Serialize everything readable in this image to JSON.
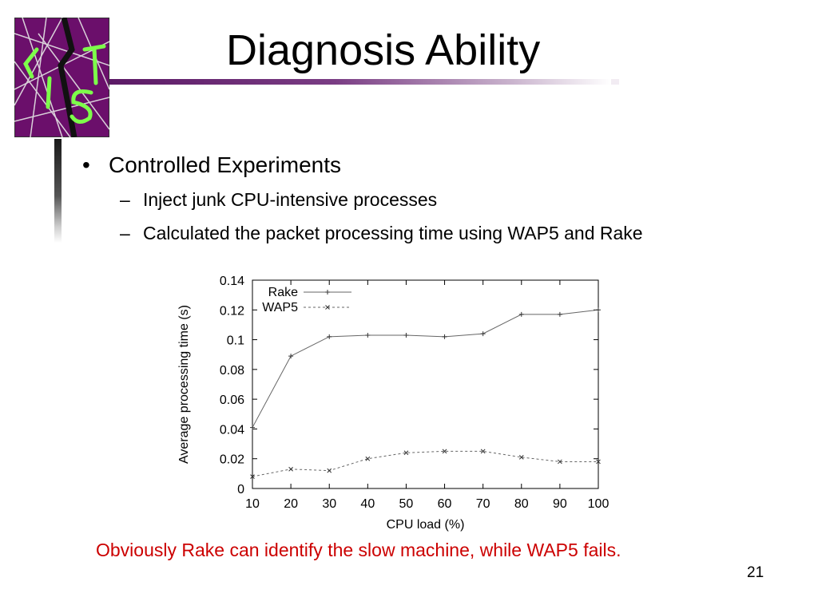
{
  "slide": {
    "title": "Diagnosis Ability",
    "bullet_mark": "•",
    "sub_mark": "–",
    "bullet": "Controlled Experiments",
    "subbullets": [
      "Inject junk CPU-intensive processes",
      "Calculated the packet processing time using WAP5 and Rake"
    ],
    "caption": "Obviously Rake can identify the slow machine, while WAP5 fails.",
    "page_number": "21",
    "colors": {
      "caption": "#cc0000",
      "accent": "#5c1a66",
      "logo_bg": "#6b0f6b",
      "logo_lines": "#7dff4a"
    }
  },
  "chart_data": {
    "type": "line",
    "xlabel": "CPU load (%)",
    "ylabel": "Average processing time (s)",
    "categories": [
      10,
      20,
      30,
      40,
      50,
      60,
      70,
      80,
      90,
      100
    ],
    "xlim": [
      10,
      100
    ],
    "ylim": [
      0,
      0.14
    ],
    "yticks": [
      "0",
      "0.02",
      "0.04",
      "0.06",
      "0.08",
      "0.1",
      "0.12",
      "0.14"
    ],
    "xticks": [
      "10",
      "20",
      "30",
      "40",
      "50",
      "60",
      "70",
      "80",
      "90",
      "100"
    ],
    "legend_position": "top-left",
    "grid": false,
    "series": [
      {
        "name": "Rake",
        "marker": "+",
        "dash": "solid",
        "values": [
          0.041,
          0.089,
          0.102,
          0.103,
          0.103,
          0.102,
          0.104,
          0.117,
          0.117,
          0.12
        ]
      },
      {
        "name": "WAP5",
        "marker": "x",
        "dash": "dashed",
        "values": [
          0.008,
          0.013,
          0.012,
          0.02,
          0.024,
          0.025,
          0.025,
          0.021,
          0.018,
          0.018
        ]
      }
    ]
  }
}
